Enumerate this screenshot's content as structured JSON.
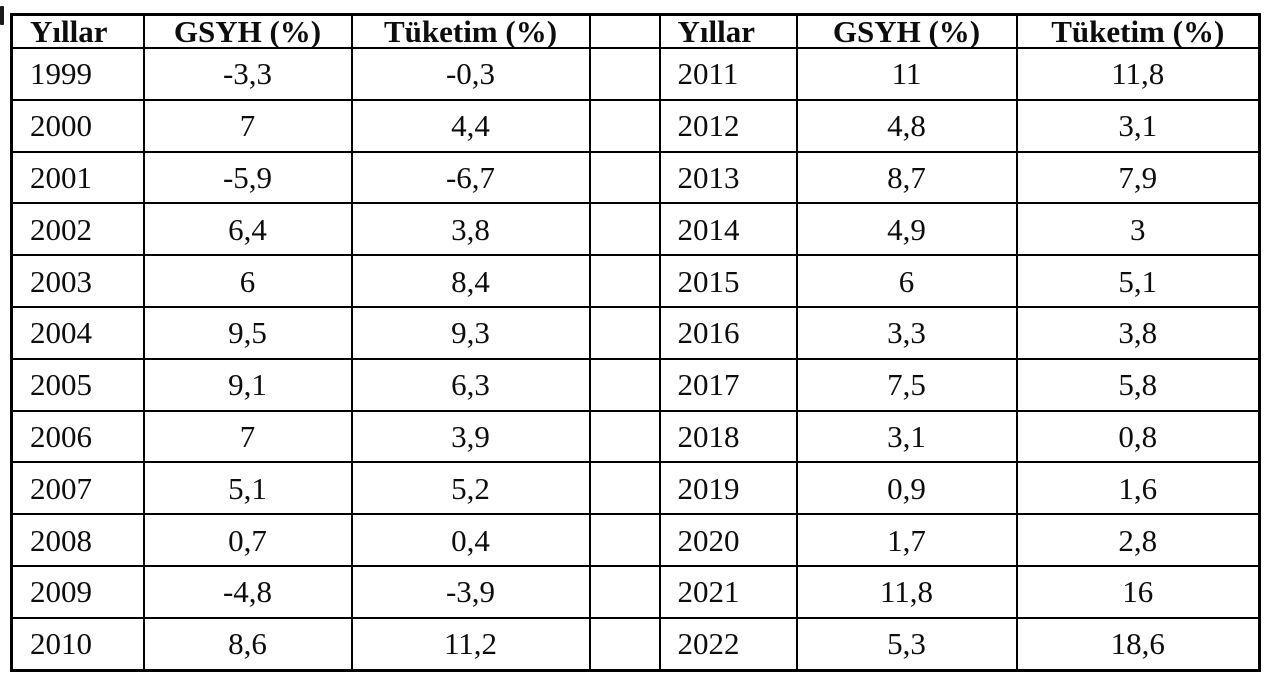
{
  "table": {
    "header": {
      "year": "Yıllar",
      "gdp": "GSYH (%)",
      "consumption": "Tüketim (%)"
    },
    "left_rows": [
      [
        "1999",
        "-3,3",
        "-0,3"
      ],
      [
        "2000",
        "7",
        "4,4"
      ],
      [
        "2001",
        "-5,9",
        "-6,7"
      ],
      [
        "2002",
        "6,4",
        "3,8"
      ],
      [
        "2003",
        "6",
        "8,4"
      ],
      [
        "2004",
        "9,5",
        "9,3"
      ],
      [
        "2005",
        "9,1",
        "6,3"
      ],
      [
        "2006",
        "7",
        "3,9"
      ],
      [
        "2007",
        "5,1",
        "5,2"
      ],
      [
        "2008",
        "0,7",
        "0,4"
      ],
      [
        "2009",
        "-4,8",
        "-3,9"
      ],
      [
        "2010",
        "8,6",
        "11,2"
      ]
    ],
    "right_rows": [
      [
        "2011",
        "11",
        "11,8"
      ],
      [
        "2012",
        "4,8",
        "3,1"
      ],
      [
        "2013",
        "8,7",
        "7,9"
      ],
      [
        "2014",
        "4,9",
        "3"
      ],
      [
        "2015",
        "6",
        "5,1"
      ],
      [
        "2016",
        "3,3",
        "3,8"
      ],
      [
        "2017",
        "7,5",
        "5,8"
      ],
      [
        "2018",
        "3,1",
        "0,8"
      ],
      [
        "2019",
        "0,9",
        "1,6"
      ],
      [
        "2020",
        "1,7",
        "2,8"
      ],
      [
        "2021",
        "11,8",
        "16"
      ],
      [
        "2022",
        "5,3",
        "18,6"
      ]
    ],
    "colors": {
      "border": "#000000",
      "text": "#0d0d0d",
      "background": "#ffffff"
    }
  }
}
